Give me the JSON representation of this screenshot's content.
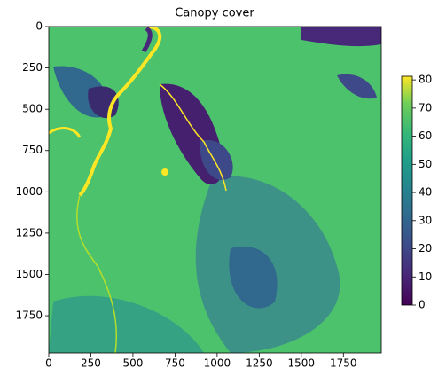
{
  "chart_data": {
    "type": "image",
    "title": "Canopy cover",
    "colormap": "viridis",
    "xlim": [
      0,
      1975
    ],
    "ylim": [
      1975,
      0
    ],
    "xticks": [
      0,
      250,
      500,
      750,
      1000,
      1250,
      1500,
      1750
    ],
    "yticks": [
      0,
      250,
      500,
      750,
      1000,
      1250,
      1500,
      1750
    ],
    "clim": [
      0,
      81.3
    ],
    "cticks": [
      0,
      10,
      20,
      30,
      40,
      50,
      60,
      70,
      80
    ]
  }
}
